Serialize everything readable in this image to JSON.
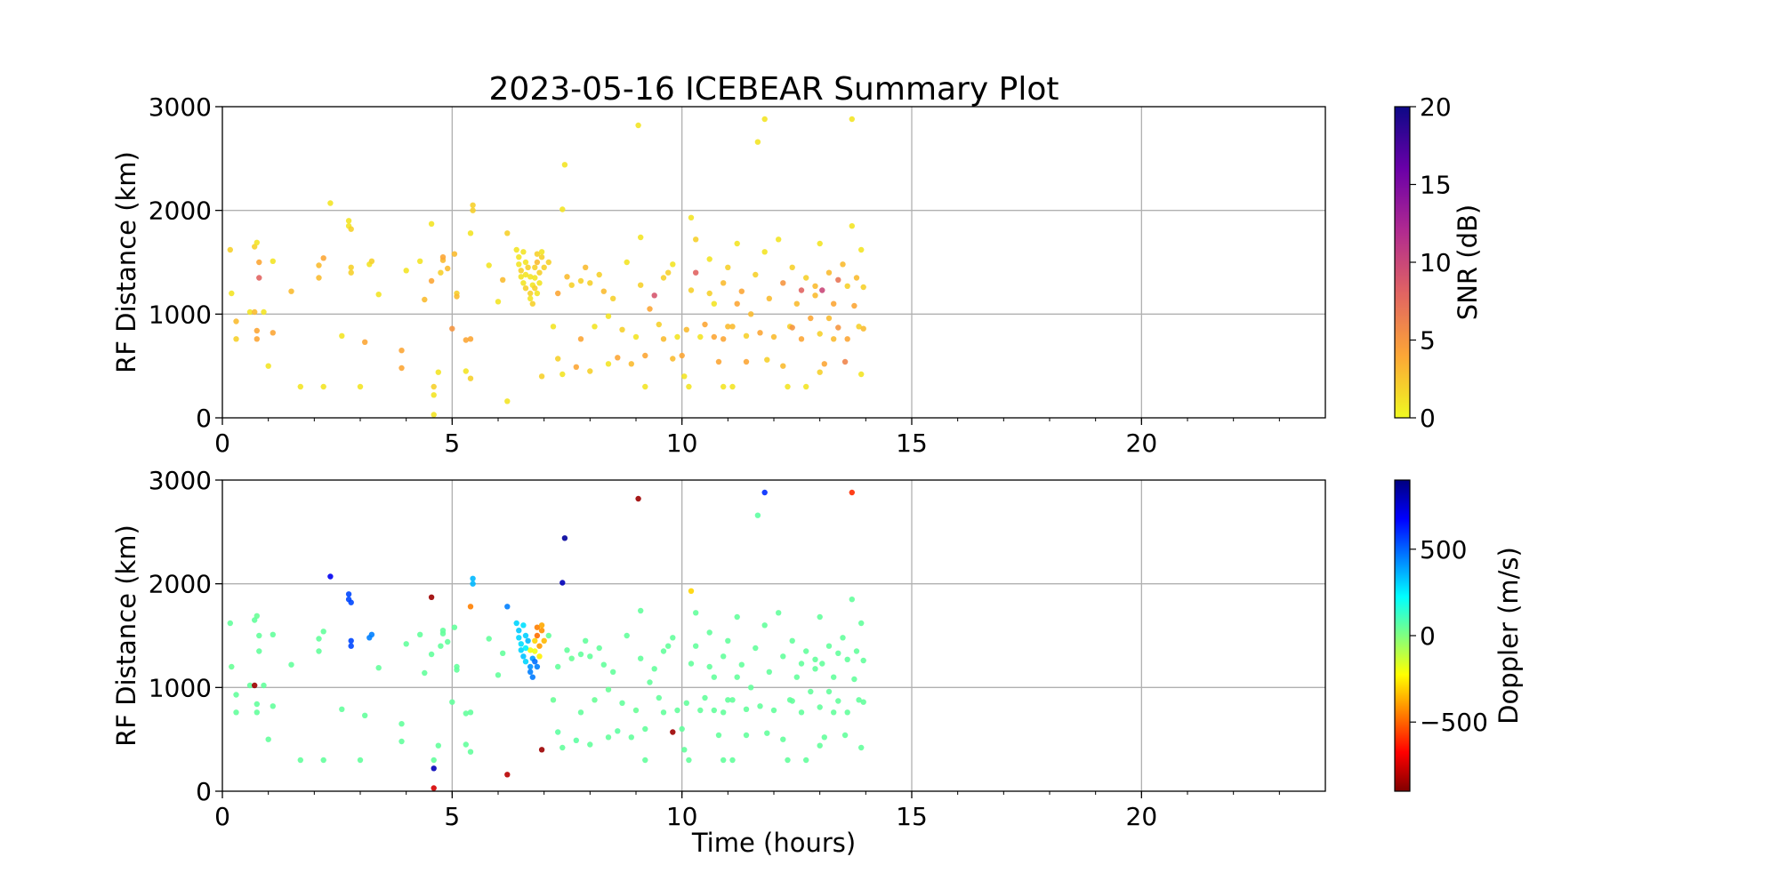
{
  "chart_data": [
    {
      "type": "scatter",
      "title": "2023-05-16 ICEBEAR Summary Plot",
      "ylabel": "RF Distance (km)",
      "xlabel": "",
      "xlim": [
        0,
        24
      ],
      "ylim": [
        0,
        3000
      ],
      "xticks": [
        0,
        5,
        10,
        15,
        20
      ],
      "yticks": [
        0,
        1000,
        2000,
        3000
      ],
      "grid": true,
      "color_by": "snr",
      "colorbar": {
        "label": "SNR (dB)",
        "range": [
          0,
          20
        ],
        "ticks": [
          0,
          5,
          10,
          15,
          20
        ],
        "colormap": "plasma_r",
        "stops": [
          "#f0f921",
          "#fca636",
          "#e16462",
          "#b12a90",
          "#6a00a8",
          "#0d0887"
        ]
      }
    },
    {
      "type": "scatter",
      "title": "",
      "ylabel": "RF Distance (km)",
      "xlabel": "Time (hours)",
      "xlim": [
        0,
        24
      ],
      "ylim": [
        0,
        3000
      ],
      "xticks": [
        0,
        5,
        10,
        15,
        20
      ],
      "yticks": [
        0,
        1000,
        2000,
        3000
      ],
      "grid": true,
      "color_by": "doppler",
      "colorbar": {
        "label": "Doppler (m/s)",
        "range": [
          -900,
          900
        ],
        "ticks": [
          -500,
          0,
          500
        ],
        "tick_labels": [
          "−500",
          "0",
          "500"
        ],
        "colormap": "jet_r",
        "stops": [
          "#800000",
          "#ff0000",
          "#ff8000",
          "#ffff00",
          "#80ff80",
          "#00ffff",
          "#0080ff",
          "#0000ff",
          "#000080"
        ]
      }
    }
  ],
  "detections_fields": [
    "time_hours",
    "rf_distance_km",
    "snr_db",
    "doppler_ms"
  ],
  "detections": [
    [
      0.17,
      1620,
      2,
      50
    ],
    [
      0.2,
      1200,
      1,
      40
    ],
    [
      0.3,
      930,
      3,
      50
    ],
    [
      0.3,
      760,
      2,
      50
    ],
    [
      0.6,
      1020,
      1,
      50
    ],
    [
      0.7,
      1650,
      2,
      50
    ],
    [
      0.75,
      1690,
      1,
      40
    ],
    [
      0.8,
      1500,
      4,
      50
    ],
    [
      0.8,
      1350,
      8,
      50
    ],
    [
      0.75,
      840,
      4,
      50
    ],
    [
      0.7,
      1020,
      3,
      -850
    ],
    [
      0.75,
      760,
      4,
      50
    ],
    [
      0.9,
      1020,
      1,
      50
    ],
    [
      1.1,
      820,
      4,
      50
    ],
    [
      1.0,
      500,
      1,
      50
    ],
    [
      1.1,
      1510,
      1,
      50
    ],
    [
      1.5,
      1220,
      3,
      50
    ],
    [
      1.7,
      300,
      1,
      50
    ],
    [
      2.2,
      300,
      1,
      50
    ],
    [
      2.2,
      1540,
      4,
      50
    ],
    [
      2.1,
      1470,
      3,
      50
    ],
    [
      2.1,
      1350,
      3,
      50
    ],
    [
      2.35,
      2070,
      1,
      700
    ],
    [
      2.6,
      790,
      1,
      50
    ],
    [
      2.75,
      1900,
      1,
      550
    ],
    [
      2.75,
      1850,
      1,
      550
    ],
    [
      2.8,
      1820,
      2,
      550
    ],
    [
      2.8,
      1450,
      2,
      550
    ],
    [
      2.8,
      1400,
      2,
      550
    ],
    [
      3.0,
      300,
      1,
      50
    ],
    [
      3.1,
      730,
      4,
      50
    ],
    [
      3.2,
      1480,
      1,
      450
    ],
    [
      3.25,
      1510,
      2,
      450
    ],
    [
      3.4,
      1190,
      1,
      50
    ],
    [
      3.9,
      650,
      4,
      50
    ],
    [
      3.9,
      480,
      4,
      50
    ],
    [
      4.0,
      1420,
      1,
      50
    ],
    [
      4.3,
      1510,
      1,
      50
    ],
    [
      4.4,
      1140,
      3,
      50
    ],
    [
      4.55,
      1870,
      1,
      -850
    ],
    [
      4.55,
      1320,
      4,
      50
    ],
    [
      4.6,
      300,
      2,
      50
    ],
    [
      4.6,
      220,
      1,
      800
    ],
    [
      4.6,
      30,
      1,
      -750
    ],
    [
      4.7,
      440,
      1,
      50
    ],
    [
      4.75,
      1400,
      2,
      50
    ],
    [
      4.8,
      1520,
      3,
      50
    ],
    [
      4.8,
      1550,
      4,
      50
    ],
    [
      4.9,
      1440,
      3,
      50
    ],
    [
      5.0,
      860,
      5,
      50
    ],
    [
      5.05,
      1580,
      3,
      50
    ],
    [
      5.1,
      1200,
      2,
      50
    ],
    [
      5.1,
      1170,
      3,
      50
    ],
    [
      5.3,
      750,
      4,
      50
    ],
    [
      5.3,
      450,
      1,
      50
    ],
    [
      5.4,
      380,
      2,
      50
    ],
    [
      5.45,
      2050,
      2,
      350
    ],
    [
      5.45,
      2000,
      2,
      350
    ],
    [
      5.4,
      1780,
      1,
      -450
    ],
    [
      5.4,
      760,
      4,
      50
    ],
    [
      5.8,
      1470,
      1,
      50
    ],
    [
      6.0,
      1120,
      1,
      50
    ],
    [
      6.1,
      1330,
      3,
      50
    ],
    [
      6.2,
      160,
      1,
      -800
    ],
    [
      6.2,
      1780,
      2,
      450
    ],
    [
      6.4,
      1620,
      1,
      300
    ],
    [
      6.45,
      1550,
      1,
      320
    ],
    [
      6.45,
      1480,
      1,
      300
    ],
    [
      6.5,
      1420,
      2,
      280
    ],
    [
      6.5,
      1360,
      1,
      300
    ],
    [
      6.55,
      1300,
      1,
      330
    ],
    [
      6.6,
      1250,
      2,
      300
    ],
    [
      6.6,
      1500,
      1,
      310
    ],
    [
      6.65,
      1450,
      2,
      350
    ],
    [
      6.7,
      1200,
      2,
      420
    ],
    [
      6.7,
      1150,
      1,
      450
    ],
    [
      6.75,
      1100,
      2,
      460
    ],
    [
      6.75,
      1280,
      1,
      400
    ],
    [
      6.8,
      1350,
      1,
      -200
    ],
    [
      6.8,
      1450,
      2,
      -300
    ],
    [
      6.85,
      1580,
      2,
      -450
    ],
    [
      6.85,
      1500,
      3,
      -480
    ],
    [
      6.9,
      1400,
      2,
      -400
    ],
    [
      6.9,
      1300,
      1,
      -250
    ],
    [
      6.95,
      1550,
      2,
      -420
    ],
    [
      6.95,
      1600,
      1,
      -380
    ],
    [
      6.85,
      1200,
      1,
      450
    ],
    [
      6.8,
      1250,
      2,
      480
    ],
    [
      7.0,
      1450,
      2,
      -350
    ],
    [
      6.7,
      1360,
      1,
      -200
    ],
    [
      6.6,
      1380,
      1,
      250
    ],
    [
      6.55,
      1600,
      1,
      280
    ],
    [
      6.95,
      400,
      2,
      -850
    ],
    [
      7.45,
      2440,
      1,
      850
    ],
    [
      7.4,
      2010,
      1,
      800
    ],
    [
      9.05,
      2820,
      1,
      -850
    ],
    [
      9.8,
      570,
      3,
      -850
    ],
    [
      10.2,
      1930,
      1,
      -300
    ],
    [
      11.8,
      2880,
      1,
      600
    ],
    [
      11.65,
      2660,
      1,
      60
    ],
    [
      13.7,
      2880,
      1,
      -600
    ],
    [
      7.1,
      1500,
      2,
      50
    ],
    [
      7.2,
      880,
      1,
      40
    ],
    [
      7.3,
      570,
      2,
      60
    ],
    [
      7.3,
      1200,
      4,
      50
    ],
    [
      7.4,
      420,
      1,
      50
    ],
    [
      7.5,
      1360,
      3,
      50
    ],
    [
      7.6,
      1280,
      2,
      40
    ],
    [
      7.7,
      490,
      4,
      60
    ],
    [
      7.8,
      760,
      4,
      50
    ],
    [
      7.8,
      1320,
      2,
      50
    ],
    [
      7.9,
      1450,
      3,
      50
    ],
    [
      8.0,
      450,
      2,
      50
    ],
    [
      8.1,
      880,
      1,
      40
    ],
    [
      8.2,
      1380,
      2,
      50
    ],
    [
      8.3,
      1220,
      3,
      50
    ],
    [
      8.4,
      520,
      1,
      50
    ],
    [
      8.4,
      980,
      1,
      40
    ],
    [
      8.5,
      1150,
      2,
      50
    ],
    [
      8.6,
      580,
      4,
      60
    ],
    [
      8.7,
      850,
      2,
      50
    ],
    [
      8.8,
      1500,
      1,
      50
    ],
    [
      8.9,
      520,
      3,
      50
    ],
    [
      9.0,
      780,
      1,
      40
    ],
    [
      9.1,
      1280,
      2,
      50
    ],
    [
      9.1,
      1740,
      1,
      50
    ],
    [
      9.2,
      300,
      1,
      50
    ],
    [
      9.2,
      600,
      4,
      50
    ],
    [
      9.3,
      1050,
      4,
      50
    ],
    [
      9.4,
      1180,
      9,
      50
    ],
    [
      9.5,
      900,
      2,
      50
    ],
    [
      9.6,
      760,
      3,
      50
    ],
    [
      9.7,
      1400,
      2,
      50
    ],
    [
      9.8,
      1480,
      1,
      50
    ],
    [
      9.9,
      780,
      1,
      50
    ],
    [
      10.0,
      600,
      4,
      50
    ],
    [
      10.05,
      400,
      1,
      50
    ],
    [
      10.1,
      850,
      3,
      50
    ],
    [
      10.15,
      300,
      1,
      50
    ],
    [
      10.2,
      1230,
      2,
      50
    ],
    [
      10.3,
      1400,
      8,
      50
    ],
    [
      10.3,
      1720,
      2,
      50
    ],
    [
      10.4,
      780,
      1,
      50
    ],
    [
      10.5,
      900,
      4,
      50
    ],
    [
      10.6,
      1530,
      1,
      50
    ],
    [
      10.7,
      1100,
      1,
      50
    ],
    [
      10.7,
      780,
      4,
      50
    ],
    [
      10.8,
      540,
      4,
      50
    ],
    [
      10.9,
      300,
      1,
      50
    ],
    [
      10.9,
      1300,
      3,
      50
    ],
    [
      11.0,
      1450,
      2,
      50
    ],
    [
      11.1,
      880,
      3,
      50
    ],
    [
      11.1,
      300,
      1,
      50
    ],
    [
      11.2,
      1680,
      1,
      50
    ],
    [
      11.3,
      1220,
      4,
      50
    ],
    [
      11.4,
      790,
      2,
      50
    ],
    [
      11.4,
      540,
      4,
      50
    ],
    [
      11.5,
      1000,
      3,
      50
    ],
    [
      11.6,
      1380,
      2,
      50
    ],
    [
      11.7,
      820,
      4,
      50
    ],
    [
      11.8,
      1600,
      1,
      50
    ],
    [
      11.85,
      560,
      2,
      50
    ],
    [
      11.9,
      1150,
      3,
      50
    ],
    [
      12.0,
      780,
      3,
      50
    ],
    [
      12.1,
      1720,
      1,
      50
    ],
    [
      12.2,
      1300,
      5,
      50
    ],
    [
      12.2,
      500,
      3,
      50
    ],
    [
      12.3,
      300,
      1,
      50
    ],
    [
      12.35,
      880,
      2,
      50
    ],
    [
      12.4,
      1450,
      2,
      50
    ],
    [
      12.5,
      1100,
      3,
      50
    ],
    [
      12.6,
      760,
      4,
      50
    ],
    [
      12.6,
      1230,
      8,
      50
    ],
    [
      12.7,
      300,
      1,
      50
    ],
    [
      12.7,
      1350,
      2,
      50
    ],
    [
      12.8,
      960,
      4,
      50
    ],
    [
      12.9,
      1270,
      3,
      50
    ],
    [
      13.0,
      810,
      2,
      50
    ],
    [
      13.0,
      1680,
      1,
      50
    ],
    [
      13.05,
      1230,
      10,
      50
    ],
    [
      13.1,
      520,
      4,
      50
    ],
    [
      13.2,
      1400,
      3,
      50
    ],
    [
      13.3,
      760,
      3,
      50
    ],
    [
      13.3,
      1100,
      4,
      50
    ],
    [
      13.4,
      870,
      5,
      50
    ],
    [
      13.5,
      1480,
      3,
      50
    ],
    [
      13.55,
      540,
      6,
      50
    ],
    [
      13.6,
      1270,
      2,
      50
    ],
    [
      13.6,
      760,
      4,
      50
    ],
    [
      13.7,
      1850,
      1,
      50
    ],
    [
      13.75,
      1080,
      4,
      50
    ],
    [
      13.8,
      1350,
      3,
      50
    ],
    [
      13.85,
      880,
      2,
      50
    ],
    [
      13.9,
      1620,
      1,
      50
    ],
    [
      13.95,
      1260,
      2,
      50
    ],
    [
      13.9,
      420,
      1,
      50
    ],
    [
      13.95,
      860,
      3,
      50
    ],
    [
      13.0,
      440,
      2,
      50
    ],
    [
      12.4,
      870,
      5,
      50
    ],
    [
      11.2,
      1100,
      4,
      50
    ],
    [
      10.6,
      1200,
      2,
      50
    ],
    [
      9.6,
      1350,
      2,
      50
    ],
    [
      8.0,
      1300,
      2,
      50
    ],
    [
      12.9,
      1180,
      3,
      50
    ],
    [
      13.2,
      960,
      3,
      50
    ],
    [
      13.4,
      1330,
      7,
      50
    ],
    [
      11.0,
      880,
      3,
      50
    ],
    [
      10.9,
      760,
      4,
      50
    ]
  ]
}
